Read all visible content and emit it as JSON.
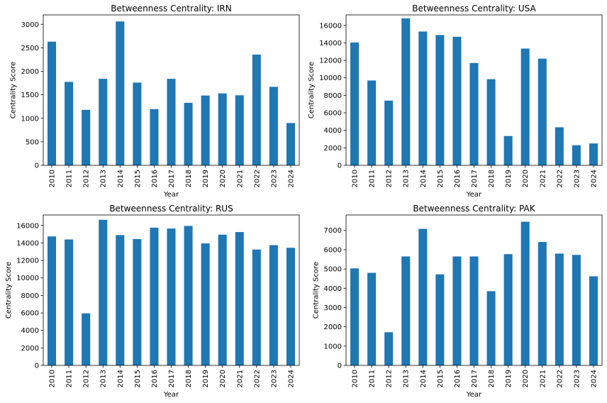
{
  "chart_data": [
    {
      "type": "bar",
      "title": "Betweenness Centrality: IRN",
      "xlabel": "Year",
      "ylabel": "Centrality Score",
      "color": "#1f77b4",
      "categories": [
        "2010",
        "2011",
        "2012",
        "2013",
        "2014",
        "2015",
        "2016",
        "2017",
        "2018",
        "2019",
        "2020",
        "2021",
        "2022",
        "2023",
        "2024"
      ],
      "values": [
        2630,
        1775,
        1180,
        1840,
        3060,
        1760,
        1195,
        1840,
        1330,
        1485,
        1530,
        1490,
        2355,
        1670,
        900
      ],
      "ylim": [
        0,
        3200
      ],
      "yticks": [
        0,
        500,
        1000,
        1500,
        2000,
        2500,
        3000
      ]
    },
    {
      "type": "bar",
      "title": "Betweenness Centrality: USA",
      "xlabel": "Year",
      "ylabel": "Centrality Score",
      "color": "#1f77b4",
      "categories": [
        "2010",
        "2011",
        "2012",
        "2013",
        "2014",
        "2015",
        "2016",
        "2017",
        "2018",
        "2019",
        "2020",
        "2021",
        "2022",
        "2023",
        "2024"
      ],
      "values": [
        14050,
        9700,
        7400,
        16800,
        15300,
        14900,
        14700,
        11700,
        9850,
        3350,
        13350,
        12200,
        4350,
        2300,
        2500
      ],
      "ylim": [
        0,
        17200
      ],
      "yticks": [
        0,
        2000,
        4000,
        6000,
        8000,
        10000,
        12000,
        14000,
        16000
      ]
    },
    {
      "type": "bar",
      "title": "Betweenness Centrality: RUS",
      "xlabel": "Year",
      "ylabel": "Centrality Score",
      "color": "#1f77b4",
      "categories": [
        "2010",
        "2011",
        "2012",
        "2013",
        "2014",
        "2015",
        "2016",
        "2017",
        "2018",
        "2019",
        "2020",
        "2021",
        "2022",
        "2023",
        "2024"
      ],
      "values": [
        14750,
        14400,
        5950,
        16650,
        14900,
        14450,
        15750,
        15650,
        15950,
        13950,
        14950,
        15250,
        13250,
        13750,
        13450
      ],
      "ylim": [
        0,
        17200
      ],
      "yticks": [
        0,
        2000,
        4000,
        6000,
        8000,
        10000,
        12000,
        14000,
        16000
      ]
    },
    {
      "type": "bar",
      "title": "Betweenness Centrality: PAK",
      "xlabel": "Year",
      "ylabel": "Centrality Score",
      "color": "#1f77b4",
      "categories": [
        "2010",
        "2011",
        "2012",
        "2013",
        "2014",
        "2015",
        "2016",
        "2017",
        "2018",
        "2019",
        "2020",
        "2021",
        "2022",
        "2023",
        "2024"
      ],
      "values": [
        5030,
        4800,
        1720,
        5650,
        7080,
        4720,
        5650,
        5650,
        3850,
        5770,
        7450,
        6400,
        5800,
        5730,
        4620
      ],
      "ylim": [
        0,
        7800
      ],
      "yticks": [
        0,
        1000,
        2000,
        3000,
        4000,
        5000,
        6000,
        7000
      ]
    }
  ]
}
